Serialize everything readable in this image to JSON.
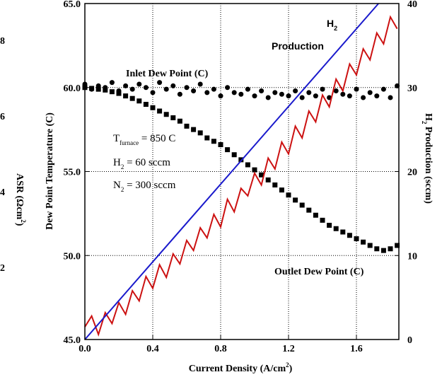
{
  "chart_data": {
    "type": "scatter-line",
    "x_label": {
      "text": "Current Density (A/cm",
      "sup": "2",
      "rest": ")"
    },
    "y_label": "Dew Point Temperature (C)",
    "y2_label": {
      "text": "H",
      "sub": "2",
      "rest": " Production (sccm)"
    },
    "xlim": [
      0,
      1.85
    ],
    "xticks": [
      {
        "value": 0,
        "label": "0.0"
      },
      0.4,
      0.8,
      1.2,
      1.6
    ],
    "ylim": [
      45,
      65
    ],
    "yticks": [
      {
        "value": 45,
        "label": "45.0"
      },
      {
        "value": 50,
        "label": "50.0"
      },
      {
        "value": 55,
        "label": "55.0"
      },
      {
        "value": 60,
        "label": "60.0"
      },
      {
        "value": 65,
        "label": "65.0"
      }
    ],
    "y2lim": [
      0,
      40
    ],
    "y2ticks": [
      0,
      10,
      20,
      30,
      40
    ],
    "grid": true,
    "cropped_axis": {
      "label": {
        "text": "ASR (Ωcm",
        "sup": "2",
        "rest": ")"
      },
      "lim": [
        0,
        10
      ],
      "ticks": [
        2,
        4,
        6,
        8
      ]
    },
    "series": [
      {
        "name": "Inlet Dew Point (C)",
        "marker": "circle",
        "color": "#000000",
        "x": [
          0,
          0.04,
          0.08,
          0.12,
          0.16,
          0.2,
          0.24,
          0.28,
          0.32,
          0.36,
          0.4,
          0.44,
          0.48,
          0.52,
          0.56,
          0.6,
          0.64,
          0.68,
          0.72,
          0.76,
          0.8,
          0.84,
          0.88,
          0.92,
          0.96,
          1.0,
          1.04,
          1.08,
          1.12,
          1.16,
          1.2,
          1.24,
          1.28,
          1.32,
          1.36,
          1.4,
          1.44,
          1.48,
          1.52,
          1.56,
          1.6,
          1.64,
          1.68,
          1.72,
          1.76,
          1.8,
          1.84
        ],
        "values": [
          60.2,
          59.9,
          60.1,
          60.0,
          60.3,
          59.8,
          60.1,
          59.9,
          60.2,
          60.0,
          59.7,
          60.3,
          59.9,
          60.1,
          59.6,
          60.0,
          59.8,
          60.2,
          59.7,
          59.9,
          59.5,
          60.0,
          59.7,
          59.6,
          59.9,
          59.5,
          59.8,
          59.4,
          59.7,
          59.6,
          59.5,
          59.8,
          59.4,
          59.7,
          59.5,
          59.9,
          59.4,
          59.8,
          59.6,
          59.5,
          59.9,
          59.4,
          59.7,
          59.5,
          59.9,
          59.4,
          60.1
        ]
      },
      {
        "name": "Outlet Dew Point (C)",
        "marker": "square",
        "color": "#000000",
        "x": [
          0,
          0.04,
          0.08,
          0.12,
          0.16,
          0.2,
          0.24,
          0.28,
          0.32,
          0.36,
          0.4,
          0.44,
          0.48,
          0.52,
          0.56,
          0.6,
          0.64,
          0.68,
          0.72,
          0.76,
          0.8,
          0.84,
          0.88,
          0.92,
          0.96,
          1.0,
          1.04,
          1.08,
          1.12,
          1.16,
          1.2,
          1.24,
          1.28,
          1.32,
          1.36,
          1.4,
          1.44,
          1.48,
          1.52,
          1.56,
          1.6,
          1.64,
          1.68,
          1.72,
          1.76,
          1.8,
          1.84
        ],
        "values": [
          60.0,
          59.95,
          59.9,
          59.85,
          59.75,
          59.65,
          59.5,
          59.35,
          59.2,
          59.0,
          58.8,
          58.6,
          58.4,
          58.2,
          58.0,
          57.7,
          57.5,
          57.3,
          57.0,
          56.8,
          56.6,
          56.3,
          56.0,
          55.7,
          55.4,
          55.1,
          54.8,
          54.5,
          54.2,
          53.9,
          53.6,
          53.3,
          53.0,
          52.7,
          52.4,
          52.1,
          51.8,
          51.6,
          51.4,
          51.2,
          51.0,
          50.8,
          50.6,
          50.4,
          50.3,
          50.4,
          50.6
        ]
      },
      {
        "marker": "line",
        "axis": "y2",
        "color": "#cc1111",
        "x": [
          0,
          0.04,
          0.08,
          0.12,
          0.16,
          0.2,
          0.24,
          0.28,
          0.32,
          0.36,
          0.4,
          0.44,
          0.48,
          0.52,
          0.56,
          0.6,
          0.64,
          0.68,
          0.72,
          0.76,
          0.8,
          0.84,
          0.88,
          0.92,
          0.96,
          1.0,
          1.04,
          1.08,
          1.12,
          1.16,
          1.2,
          1.24,
          1.28,
          1.32,
          1.36,
          1.4,
          1.44,
          1.48,
          1.52,
          1.56,
          1.6,
          1.64,
          1.68,
          1.72,
          1.76,
          1.8,
          1.84
        ],
        "values": [
          1.5,
          2.8,
          0.6,
          3.2,
          1.9,
          4.4,
          3.0,
          5.8,
          4.6,
          7.5,
          6.1,
          8.9,
          7.4,
          10.2,
          9.0,
          11.8,
          10.6,
          13.3,
          12.1,
          14.9,
          13.4,
          16.7,
          15.2,
          18.0,
          17.1,
          19.8,
          18.4,
          21.6,
          20.3,
          23.5,
          22.1,
          25.4,
          24.0,
          27.2,
          25.9,
          29.1,
          27.7,
          31.0,
          29.6,
          32.8,
          31.5,
          34.6,
          33.3,
          36.5,
          35.2,
          38.4,
          37.0
        ]
      },
      {
        "marker": "line",
        "axis": "y2",
        "color": "#1a1acc",
        "x": [
          0,
          1.73
        ],
        "values": [
          0,
          40
        ]
      }
    ],
    "annotations": [
      {
        "text": "H",
        "sub": "2"
      },
      {
        "text": "Production"
      },
      {
        "text": "T",
        "sub": "furnace",
        "rest": " = 850 C"
      },
      {
        "text": "H",
        "sub": "2",
        "rest": " = 60 sccm"
      },
      {
        "text": "N",
        "sub": "2",
        "rest": " = 300 sccm"
      }
    ]
  }
}
